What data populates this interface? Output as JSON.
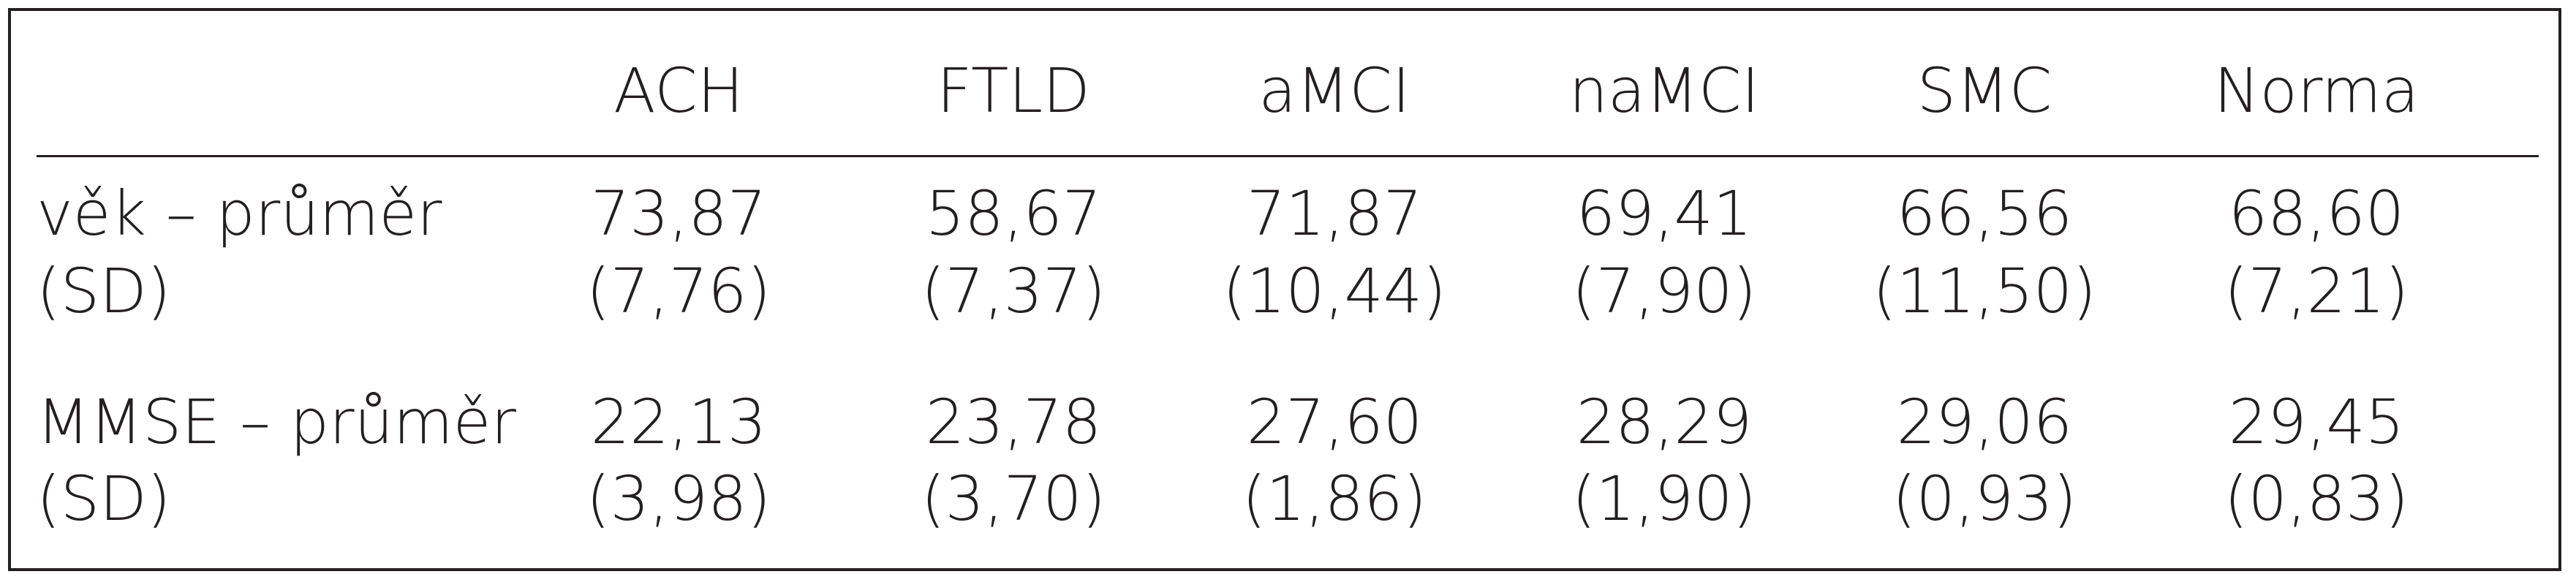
{
  "table": {
    "columns": [
      "ACH",
      "FTLD",
      "aMCI",
      "naMCI",
      "SMC",
      "Norma"
    ],
    "rows": [
      {
        "label": [
          "věk – průměr",
          "(SD)"
        ],
        "cells": [
          [
            "73,87",
            "(7,76)"
          ],
          [
            "58,67",
            "(7,37)"
          ],
          [
            "71,87",
            "(10,44)"
          ],
          [
            "69,41",
            "(7,90)"
          ],
          [
            "66,56",
            "(11,50)"
          ],
          [
            "68,60",
            "(7,21)"
          ]
        ]
      },
      {
        "label": [
          "MMSE – průměr",
          "(SD)"
        ],
        "cells": [
          [
            "22,13",
            "(3,98)"
          ],
          [
            "23,78",
            "(3,70)"
          ],
          [
            "27,60",
            "(1,86)"
          ],
          [
            "28,29",
            "(1,90)"
          ],
          [
            "29,06",
            "(0,93)"
          ],
          [
            "29,45",
            "(0,83)"
          ]
        ]
      }
    ]
  }
}
